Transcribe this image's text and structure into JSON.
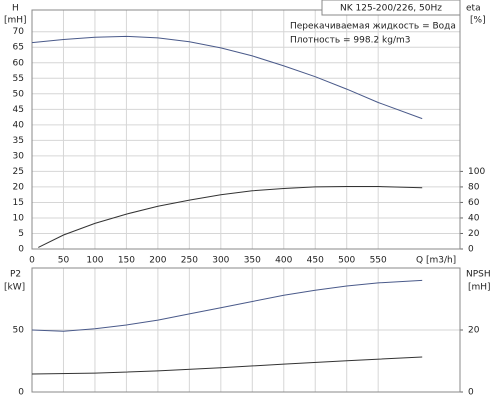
{
  "chart_data": [
    {
      "type": "line",
      "title": "NK 125-200/226, 50Hz",
      "annotations": [
        "Перекачиваемая жидкость = Вода",
        "Плотность = 998.2 kg/m3"
      ],
      "xlabel": "Q [m3/h]",
      "ylabel": "H",
      "yunit": "[mH]",
      "y2label": "eta",
      "y2unit": "[%]",
      "xlim": [
        0,
        680
      ],
      "xticks": [
        0,
        50,
        100,
        150,
        200,
        250,
        300,
        350,
        400,
        450,
        500,
        550
      ],
      "ylim": [
        0,
        77
      ],
      "yticks": [
        0,
        5,
        10,
        15,
        20,
        25,
        30,
        35,
        40,
        45,
        50,
        55,
        60,
        65,
        70
      ],
      "y2lim": [
        0,
        308
      ],
      "y2ticks": [
        0,
        20,
        40,
        60,
        80,
        100
      ],
      "grid": true,
      "series": [
        {
          "color": "#4a5a8a",
          "x": [
            0,
            50,
            100,
            150,
            200,
            250,
            300,
            350,
            400,
            450,
            500,
            550,
            620
          ],
          "values": [
            66.5,
            67.5,
            68.2,
            68.5,
            68,
            66.8,
            64.8,
            62.2,
            59,
            55.5,
            51.5,
            47.2,
            42
          ]
        },
        {
          "color": "#333333",
          "axis": "y2",
          "x": [
            10,
            50,
            100,
            150,
            200,
            250,
            300,
            350,
            400,
            450,
            500,
            550,
            620
          ],
          "values": [
            2,
            18,
            33,
            45,
            55,
            63,
            70,
            75,
            78,
            80,
            80.5,
            80.5,
            79
          ]
        }
      ]
    },
    {
      "type": "line",
      "ylabel": "P2",
      "yunit": "[kW]",
      "y2label": "NPSH",
      "y2unit": "[mH]",
      "xlim": [
        0,
        680
      ],
      "xticks": [
        0,
        50,
        100,
        150,
        200,
        250,
        300,
        350,
        400,
        450,
        500,
        550
      ],
      "ylim": [
        0,
        100
      ],
      "yticks": [
        0,
        50
      ],
      "y2lim": [
        0,
        40
      ],
      "y2ticks": [
        0,
        20
      ],
      "grid": true,
      "series": [
        {
          "color": "#4a5a8a",
          "x": [
            0,
            50,
            100,
            150,
            200,
            250,
            300,
            350,
            400,
            450,
            500,
            550,
            620
          ],
          "values": [
            50,
            49,
            51,
            54,
            58,
            63,
            68,
            73,
            78,
            82,
            85.5,
            88,
            90
          ]
        },
        {
          "color": "#333333",
          "axis": "y2",
          "x": [
            0,
            100,
            200,
            300,
            400,
            500,
            620
          ],
          "values": [
            5.8,
            6.1,
            6.8,
            7.8,
            9,
            10.1,
            11.3
          ]
        }
      ]
    }
  ]
}
